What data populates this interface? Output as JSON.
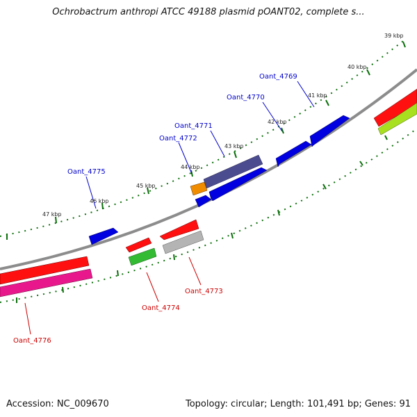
{
  "title": "Ochrobactrum anthropi ATCC 49188 plasmid pOANT02, complete s...",
  "footer": {
    "accession": "Accession: NC_009670",
    "info": "Topology: circular; Length: 101,491 bp; Genes: 91"
  },
  "colors": {
    "forward_label": "#0000cc",
    "reverse_label": "#cc0000",
    "backbone": "#8c8c8c",
    "tick": "#0a6e0a"
  },
  "kbp_labels": [
    "39 kbp",
    "40 kbp",
    "41 kbp",
    "42 kbp",
    "43 kbp",
    "44 kbp",
    "45 kbp",
    "46 kbp",
    "47 kbp"
  ],
  "forward_gene_labels": [
    "Oant_4769",
    "Oant_4770",
    "Oant_4771",
    "Oant_4772",
    "Oant_4775"
  ],
  "reverse_gene_labels": [
    "Oant_4773",
    "Oant_4774",
    "Oant_4776"
  ]
}
